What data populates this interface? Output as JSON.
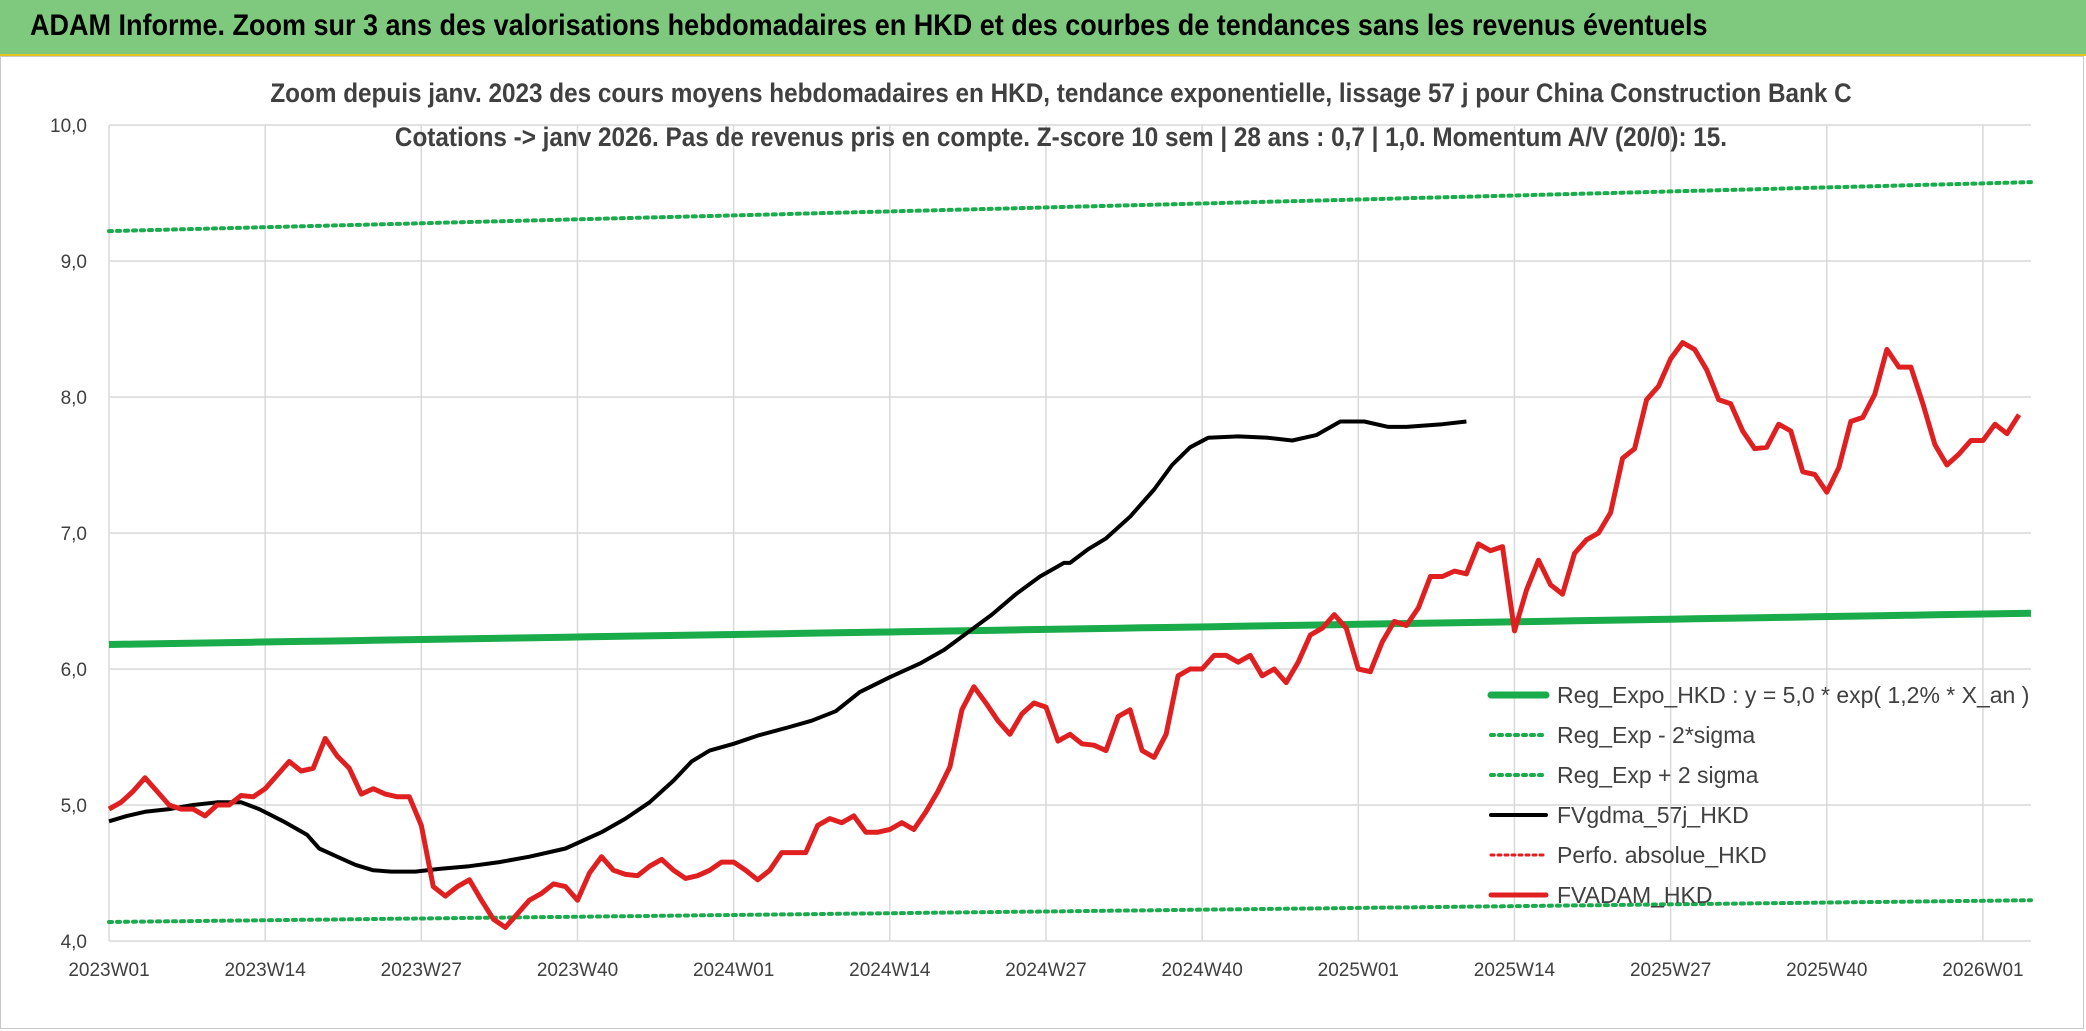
{
  "banner": {
    "title": "ADAM Informe. Zoom sur 3 ans des valorisations hebdomadaires en HKD et des courbes de tendances sans les revenus éventuels"
  },
  "chart_data": {
    "type": "line",
    "title_lines": [
      "Zoom depuis janv. 2023 des cours moyens hebdomadaires en HKD, tendance exponentielle, lissage 57 j pour China Construction Bank C",
      "Cotations -> janv 2026. Pas de revenus pris en compte. Z-score 10 sem | 28 ans : 0,7 | 1,0. Momentum A/V (20/0): 15."
    ],
    "xlabel": "",
    "ylabel": "",
    "ylim": [
      4.0,
      10.0
    ],
    "y_ticks": [
      "4,0",
      "5,0",
      "6,0",
      "7,0",
      "8,0",
      "9,0",
      "10,0"
    ],
    "x_ticks": [
      "2023W01",
      "2023W14",
      "2023W27",
      "2023W40",
      "2024W01",
      "2024W14",
      "2024W27",
      "2024W40",
      "2025W01",
      "2025W14",
      "2025W27",
      "2025W40",
      "2026W01"
    ],
    "grid": true,
    "legend_position": "right",
    "colors": {
      "reg_expo": "#1aab4a",
      "band": "#1aab4a",
      "fvgdma": "#000000",
      "perfo": "#e02020",
      "fvadam": "#e02020"
    },
    "series": [
      {
        "name": "Reg_Expo_HKD : y = 5,0 * exp( 1,2% *  X_an )",
        "style": "solid-thick",
        "start": 6.18,
        "end": 6.41
      },
      {
        "name": "Reg_Exp - 2*sigma",
        "style": "dotted",
        "start": 4.14,
        "end": 4.3
      },
      {
        "name": "Reg_Exp + 2 sigma",
        "style": "dotted",
        "start": 9.22,
        "end": 9.58
      },
      {
        "name": "FVgdma_57j_HKD",
        "style": "solid",
        "points": [
          [
            0,
            4.88
          ],
          [
            3,
            4.92
          ],
          [
            6,
            4.95
          ],
          [
            10,
            4.97
          ],
          [
            14,
            5.0
          ],
          [
            18,
            5.02
          ],
          [
            22,
            5.02
          ],
          [
            25,
            4.97
          ],
          [
            29,
            4.88
          ],
          [
            33,
            4.78
          ],
          [
            35,
            4.68
          ],
          [
            38,
            4.62
          ],
          [
            41,
            4.56
          ],
          [
            44,
            4.52
          ],
          [
            47,
            4.51
          ],
          [
            51,
            4.51
          ],
          [
            55,
            4.53
          ],
          [
            60,
            4.55
          ],
          [
            65,
            4.58
          ],
          [
            70,
            4.62
          ],
          [
            76,
            4.68
          ],
          [
            82,
            4.8
          ],
          [
            86,
            4.9
          ],
          [
            90,
            5.02
          ],
          [
            94,
            5.18
          ],
          [
            97,
            5.32
          ],
          [
            100,
            5.4
          ],
          [
            104,
            5.45
          ],
          [
            108,
            5.51
          ],
          [
            113,
            5.57
          ],
          [
            117,
            5.62
          ],
          [
            121,
            5.69
          ],
          [
            125,
            5.83
          ],
          [
            130,
            5.94
          ],
          [
            135,
            6.04
          ],
          [
            139,
            6.14
          ],
          [
            143,
            6.27
          ],
          [
            147,
            6.4
          ],
          [
            151,
            6.55
          ],
          [
            155,
            6.68
          ],
          [
            159,
            6.78
          ],
          [
            160,
            6.78
          ],
          [
            163,
            6.88
          ],
          [
            166,
            6.96
          ],
          [
            170,
            7.12
          ],
          [
            174,
            7.32
          ],
          [
            177,
            7.5
          ],
          [
            180,
            7.63
          ],
          [
            183,
            7.7
          ],
          [
            188,
            7.71
          ],
          [
            193,
            7.7
          ],
          [
            197,
            7.68
          ],
          [
            201,
            7.72
          ],
          [
            205,
            7.82
          ],
          [
            209,
            7.82
          ],
          [
            213,
            7.78
          ],
          [
            216,
            7.78
          ],
          [
            222,
            7.8
          ],
          [
            226,
            7.82
          ]
        ]
      },
      {
        "name": "Perfo. absolue_HKD",
        "style": "dotted-legend-only"
      },
      {
        "name": "FVADAM_HKD",
        "style": "solid-thick",
        "points": [
          [
            0,
            4.97
          ],
          [
            2,
            5.02
          ],
          [
            4,
            5.1
          ],
          [
            6,
            5.2
          ],
          [
            8,
            5.1
          ],
          [
            10,
            5.0
          ],
          [
            12,
            4.97
          ],
          [
            14,
            4.97
          ],
          [
            16,
            4.92
          ],
          [
            18,
            5.0
          ],
          [
            20,
            5.0
          ],
          [
            22,
            5.07
          ],
          [
            24,
            5.06
          ],
          [
            26,
            5.12
          ],
          [
            28,
            5.22
          ],
          [
            30,
            5.32
          ],
          [
            32,
            5.25
          ],
          [
            34,
            5.27
          ],
          [
            36,
            5.49
          ],
          [
            38,
            5.36
          ],
          [
            40,
            5.27
          ],
          [
            42,
            5.08
          ],
          [
            44,
            5.12
          ],
          [
            46,
            5.08
          ],
          [
            48,
            5.06
          ],
          [
            50,
            5.06
          ],
          [
            52,
            4.85
          ],
          [
            54,
            4.4
          ],
          [
            56,
            4.33
          ],
          [
            58,
            4.4
          ],
          [
            60,
            4.45
          ],
          [
            62,
            4.3
          ],
          [
            64,
            4.16
          ],
          [
            66,
            4.1
          ],
          [
            68,
            4.2
          ],
          [
            70,
            4.3
          ],
          [
            72,
            4.35
          ],
          [
            74,
            4.42
          ],
          [
            76,
            4.4
          ],
          [
            78,
            4.3
          ],
          [
            80,
            4.5
          ],
          [
            82,
            4.62
          ],
          [
            84,
            4.52
          ],
          [
            86,
            4.49
          ],
          [
            88,
            4.48
          ],
          [
            90,
            4.55
          ],
          [
            92,
            4.6
          ],
          [
            94,
            4.52
          ],
          [
            96,
            4.46
          ],
          [
            98,
            4.48
          ],
          [
            100,
            4.52
          ],
          [
            102,
            4.58
          ],
          [
            104,
            4.58
          ],
          [
            106,
            4.52
          ],
          [
            108,
            4.45
          ],
          [
            110,
            4.52
          ],
          [
            112,
            4.65
          ],
          [
            114,
            4.65
          ],
          [
            116,
            4.65
          ],
          [
            118,
            4.85
          ],
          [
            120,
            4.9
          ],
          [
            122,
            4.87
          ],
          [
            124,
            4.92
          ],
          [
            126,
            4.8
          ],
          [
            128,
            4.8
          ],
          [
            130,
            4.82
          ],
          [
            132,
            4.87
          ],
          [
            134,
            4.82
          ],
          [
            136,
            4.95
          ],
          [
            138,
            5.1
          ],
          [
            140,
            5.28
          ],
          [
            142,
            5.7
          ],
          [
            144,
            5.87
          ],
          [
            146,
            5.75
          ],
          [
            148,
            5.62
          ],
          [
            150,
            5.52
          ],
          [
            152,
            5.67
          ],
          [
            154,
            5.75
          ],
          [
            156,
            5.72
          ],
          [
            158,
            5.47
          ],
          [
            160,
            5.52
          ],
          [
            162,
            5.45
          ],
          [
            164,
            5.44
          ],
          [
            166,
            5.4
          ],
          [
            168,
            5.65
          ],
          [
            170,
            5.7
          ],
          [
            172,
            5.4
          ],
          [
            174,
            5.35
          ],
          [
            176,
            5.52
          ],
          [
            178,
            5.95
          ],
          [
            180,
            6.0
          ],
          [
            182,
            6.0
          ],
          [
            184,
            6.1
          ],
          [
            186,
            6.1
          ],
          [
            188,
            6.05
          ],
          [
            190,
            6.1
          ],
          [
            192,
            5.95
          ],
          [
            194,
            6.0
          ],
          [
            196,
            5.9
          ],
          [
            198,
            6.05
          ],
          [
            200,
            6.25
          ],
          [
            202,
            6.3
          ],
          [
            204,
            6.4
          ],
          [
            206,
            6.3
          ],
          [
            208,
            6.0
          ],
          [
            210,
            5.98
          ],
          [
            212,
            6.2
          ],
          [
            214,
            6.35
          ],
          [
            216,
            6.32
          ],
          [
            218,
            6.45
          ],
          [
            220,
            6.68
          ],
          [
            222,
            6.68
          ],
          [
            224,
            6.72
          ],
          [
            226,
            6.7
          ],
          [
            228,
            6.92
          ],
          [
            230,
            6.87
          ],
          [
            232,
            6.9
          ],
          [
            234,
            6.28
          ],
          [
            236,
            6.58
          ],
          [
            238,
            6.8
          ],
          [
            240,
            6.62
          ],
          [
            242,
            6.55
          ],
          [
            244,
            6.85
          ],
          [
            246,
            6.95
          ],
          [
            248,
            7.0
          ],
          [
            250,
            7.15
          ],
          [
            252,
            7.55
          ],
          [
            254,
            7.62
          ],
          [
            256,
            7.98
          ],
          [
            258,
            8.08
          ],
          [
            260,
            8.28
          ],
          [
            262,
            8.4
          ],
          [
            264,
            8.35
          ],
          [
            266,
            8.2
          ],
          [
            268,
            7.98
          ],
          [
            270,
            7.95
          ],
          [
            272,
            7.75
          ],
          [
            274,
            7.62
          ],
          [
            276,
            7.63
          ],
          [
            278,
            7.8
          ],
          [
            280,
            7.75
          ],
          [
            282,
            7.45
          ],
          [
            284,
            7.43
          ],
          [
            286,
            7.3
          ],
          [
            288,
            7.48
          ],
          [
            290,
            7.82
          ],
          [
            292,
            7.85
          ],
          [
            294,
            8.02
          ],
          [
            296,
            8.35
          ],
          [
            298,
            8.22
          ],
          [
            300,
            8.22
          ],
          [
            302,
            7.95
          ],
          [
            304,
            7.65
          ],
          [
            306,
            7.5
          ],
          [
            308,
            7.58
          ],
          [
            310,
            7.68
          ],
          [
            312,
            7.68
          ],
          [
            314,
            7.8
          ],
          [
            316,
            7.73
          ],
          [
            318,
            7.87
          ]
        ]
      }
    ]
  }
}
